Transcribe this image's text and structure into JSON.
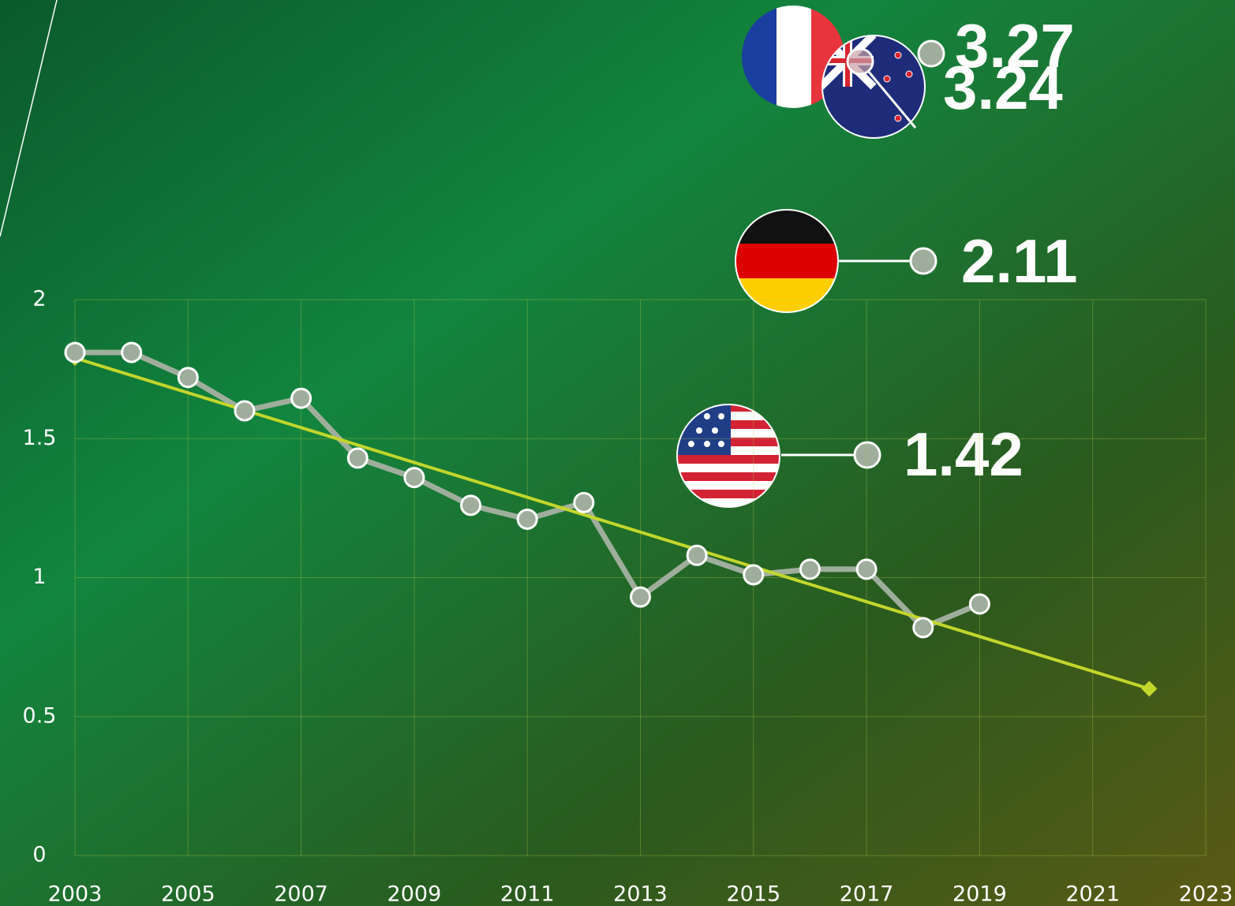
{
  "chart_data": {
    "type": "line",
    "x": [
      2003,
      2004,
      2005,
      2006,
      2007,
      2008,
      2009,
      2010,
      2011,
      2012,
      2013,
      2014,
      2015,
      2016,
      2017,
      2018,
      2019
    ],
    "series": [
      {
        "color": "#9fae9c",
        "values": [
          1.81,
          1.81,
          1.72,
          1.6,
          1.645,
          1.43,
          1.36,
          1.26,
          1.21,
          1.27,
          0.93,
          1.08,
          1.01,
          1.03,
          1.03,
          0.82,
          0.905
        ]
      }
    ],
    "trend": {
      "color": "#c3d62b",
      "x": [
        2003,
        2022
      ],
      "values": [
        1.79,
        0.6
      ]
    },
    "benchmarks": [
      3.27,
      3.24,
      2.11,
      1.42
    ],
    "xlim": [
      2003,
      2023
    ],
    "xticks": [
      2003,
      2005,
      2007,
      2009,
      2011,
      2013,
      2015,
      2017,
      2019,
      2021,
      2023
    ],
    "ylim": [
      0,
      2
    ],
    "yticks": [
      0,
      0.5,
      1,
      1.5,
      2
    ],
    "grid": true
  }
}
